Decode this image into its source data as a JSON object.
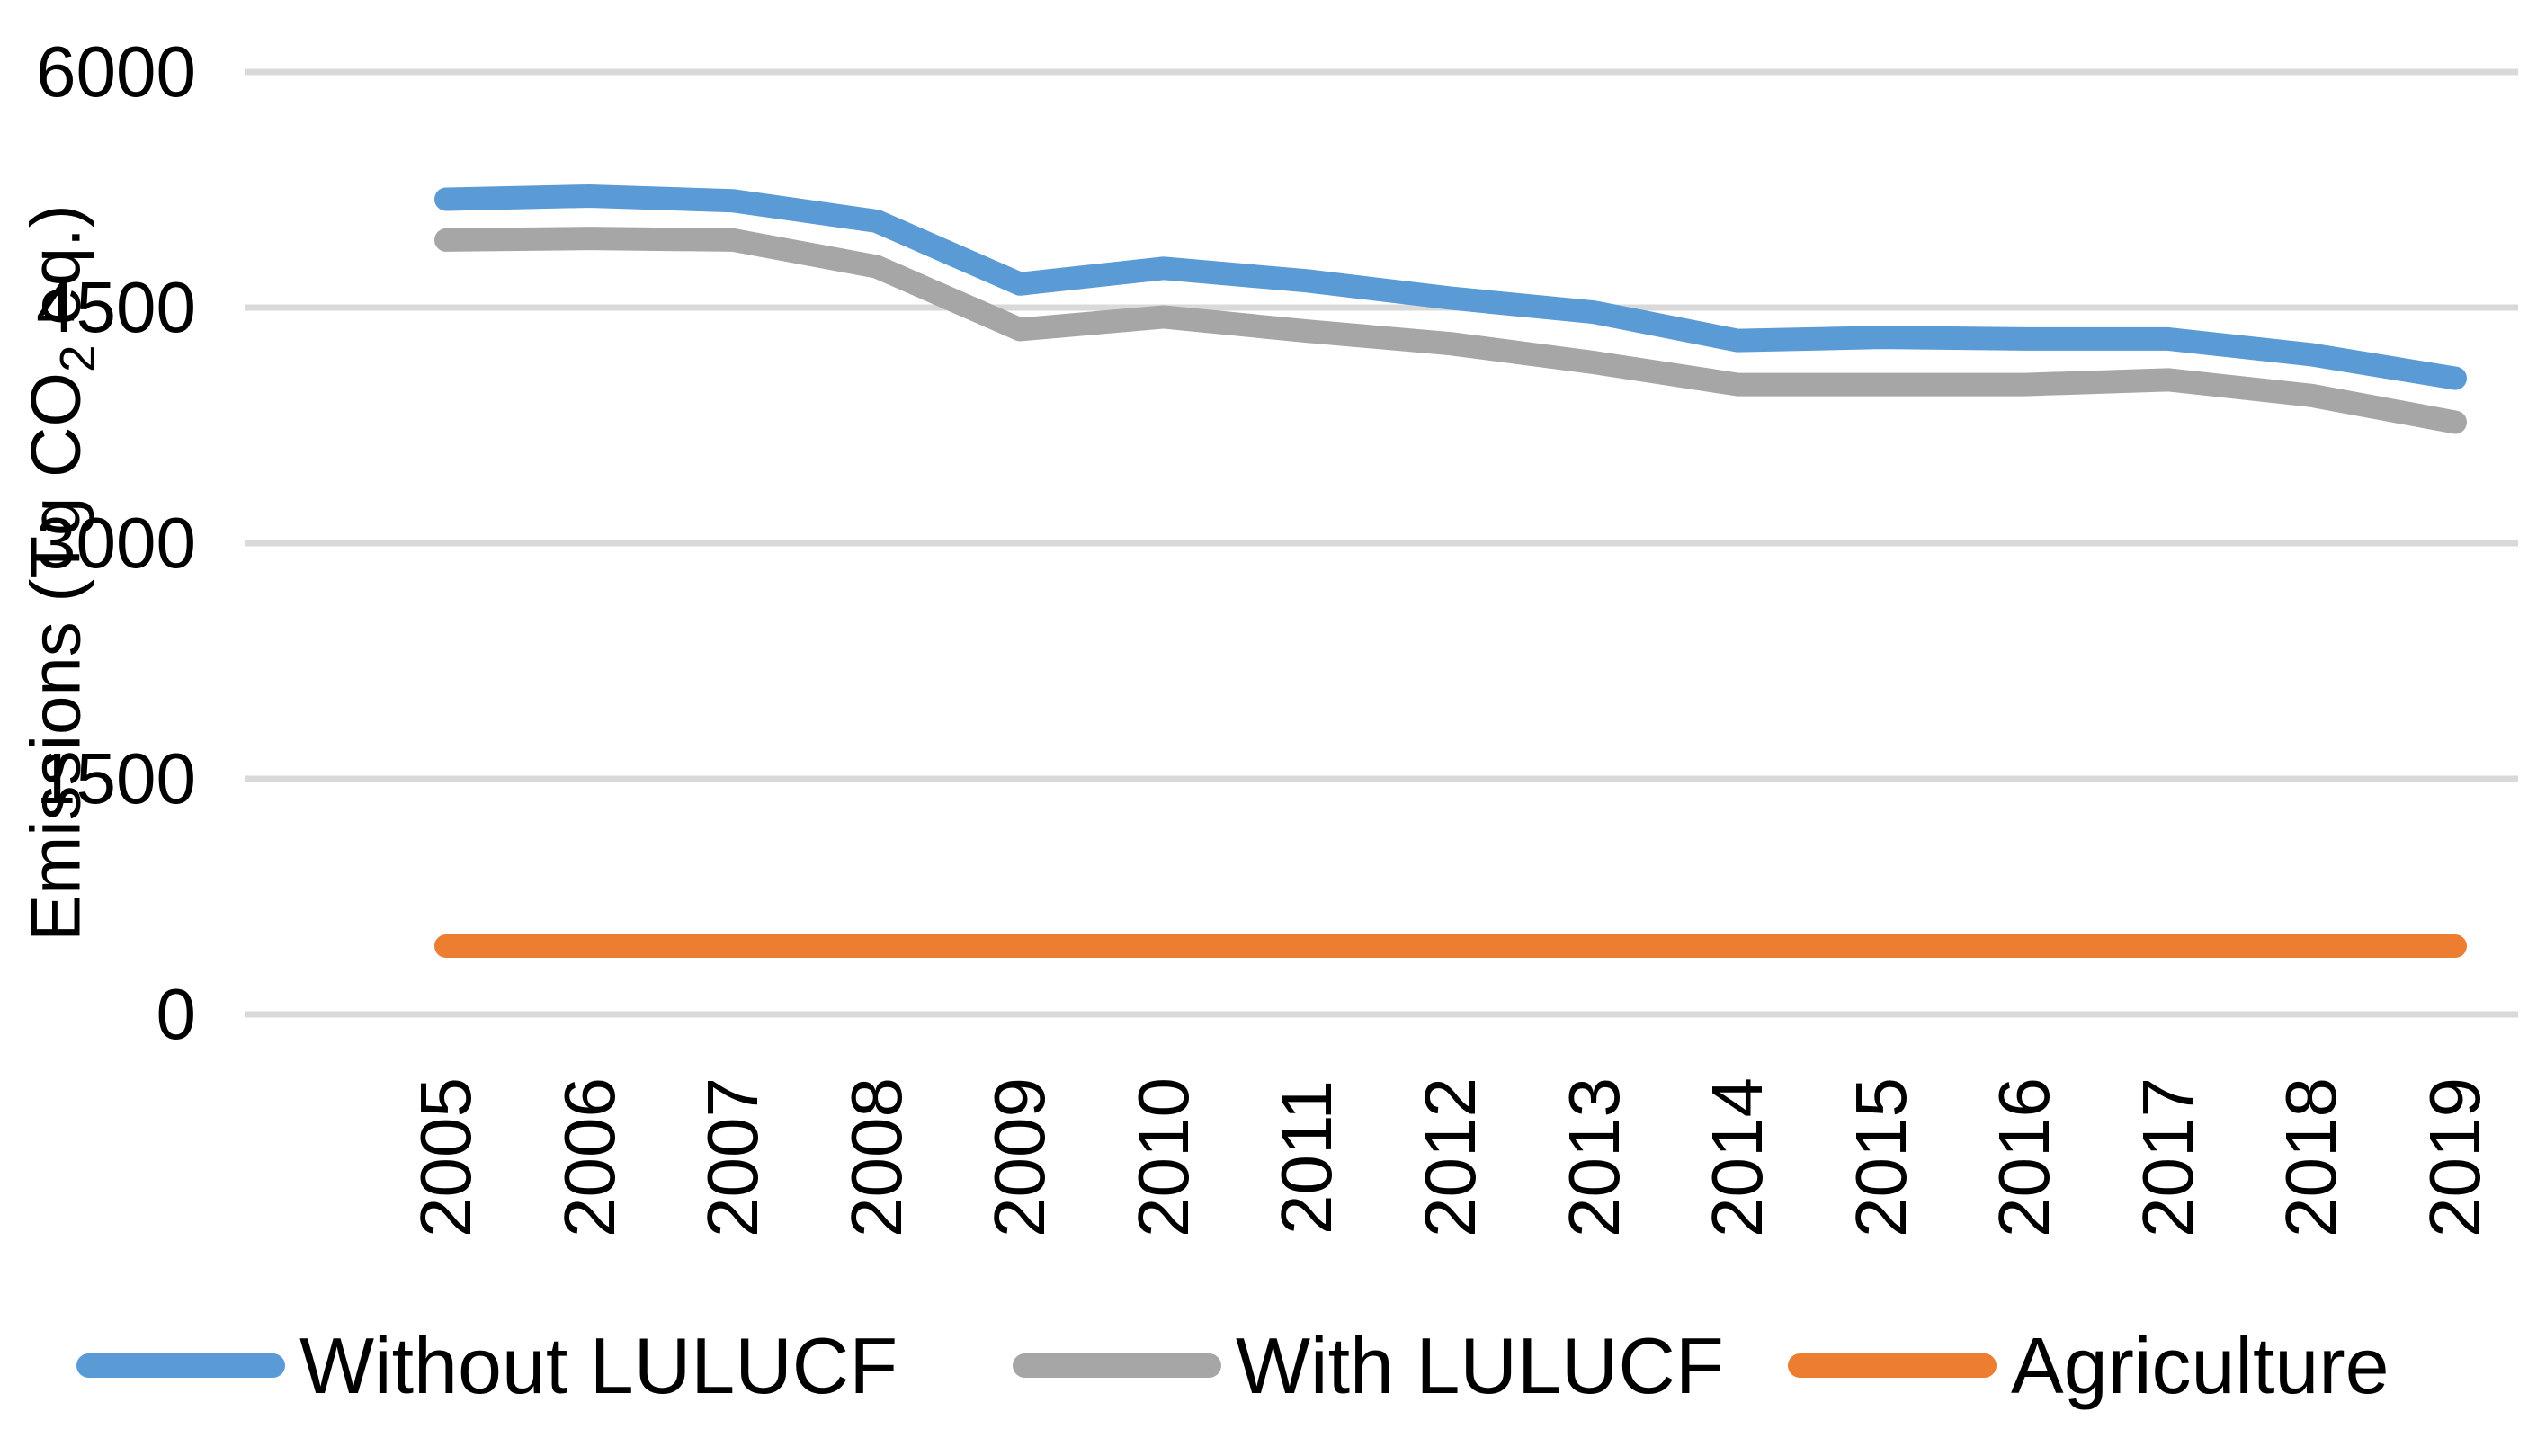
{
  "chart_data": {
    "type": "line",
    "title": "",
    "ylabel": "Emissions (Tg CO₂ eq.)",
    "ylabel_parts": {
      "pre": "Emissions (Tg CO",
      "sub": "2",
      "post": " eq.)"
    },
    "xlabel": "",
    "categories": [
      "2005",
      "2006",
      "2007",
      "2008",
      "2009",
      "2010",
      "2011",
      "2012",
      "2013",
      "2014",
      "2015",
      "2016",
      "2017",
      "2018",
      "2019"
    ],
    "series": [
      {
        "name": "Without LULUCF",
        "color": "#5B9BD5",
        "values": [
          5190,
          5210,
          5180,
          5050,
          4650,
          4750,
          4670,
          4560,
          4470,
          4290,
          4310,
          4300,
          4300,
          4200,
          4050
        ]
      },
      {
        "name": "With LULUCF",
        "color": "#A6A6A6",
        "values": [
          4930,
          4940,
          4930,
          4760,
          4360,
          4440,
          4350,
          4270,
          4150,
          4010,
          4010,
          4010,
          4040,
          3940,
          3770
        ]
      },
      {
        "name": "Agriculture",
        "color": "#ED7D31",
        "values": [
          435,
          435,
          435,
          435,
          435,
          435,
          435,
          435,
          435,
          435,
          435,
          435,
          435,
          435,
          435
        ]
      }
    ],
    "y_ticks": [
      0,
      1500,
      3000,
      4500,
      6000
    ],
    "ylim": [
      0,
      6000
    ],
    "grid": true,
    "gridline_color": "#D9D9D9",
    "legend_position": "bottom"
  }
}
